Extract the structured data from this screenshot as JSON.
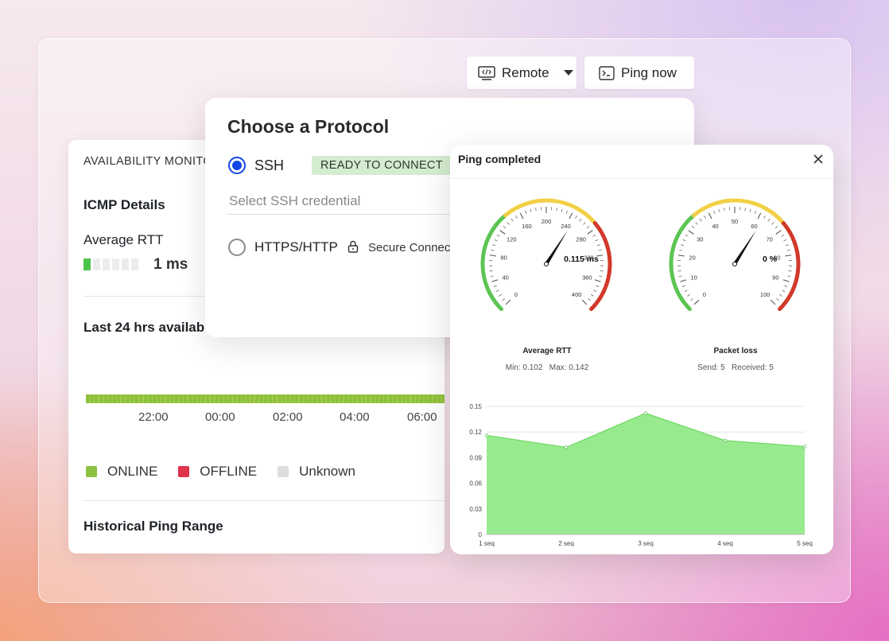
{
  "toolbar": {
    "remote_label": "Remote",
    "ping_label": "Ping now"
  },
  "availability": {
    "title": "AVAILABILITY MONITO",
    "icmp_heading": "ICMP Details",
    "avg_rtt_label": "Average RTT",
    "avg_rtt_value": "1 ms",
    "last24_heading": "Last 24 hrs availab",
    "time_ticks": [
      "22:00",
      "00:00",
      "02:00",
      "04:00",
      "06:00"
    ],
    "legend": [
      {
        "label": "ONLINE",
        "color": "#8cc141"
      },
      {
        "label": "OFFLINE",
        "color": "#e0334d"
      },
      {
        "label": "Unknown",
        "color": "#dddddd"
      }
    ],
    "historical_heading": "Historical Ping Range"
  },
  "protocol": {
    "title": "Choose a Protocol",
    "ssh_label": "SSH",
    "ssh_badge": "READY TO CONNECT",
    "credential_placeholder": "Select SSH credential",
    "https_label": "HTTPS/HTTP",
    "secure_label": "Secure Connec"
  },
  "ping": {
    "title": "Ping completed",
    "rtt_gauge": {
      "label": "Average RTT",
      "value_text": "0.115 ms",
      "min_text": "Min: 0.102",
      "max_text": "Max: 0.142",
      "ticks": [
        "0",
        "40",
        "80",
        "120",
        "160",
        "200",
        "240",
        "280",
        "320",
        "360",
        "400"
      ],
      "value": 0.115
    },
    "loss_gauge": {
      "label": "Packet loss",
      "value_text": "0 %",
      "send_text": "Send: 5",
      "received_text": "Received: 5",
      "ticks": [
        "0",
        "10",
        "20",
        "30",
        "40",
        "50",
        "60",
        "70",
        "80",
        "90",
        "100"
      ],
      "value": 0
    },
    "gauge_colors": {
      "green": "#5cc553",
      "yellow": "#f2d046",
      "red": "#d2392a"
    }
  },
  "chart_data": {
    "type": "area",
    "categories": [
      "1 seq",
      "2 seq",
      "3 seq",
      "4 seq",
      "5 seq"
    ],
    "values": [
      0.116,
      0.102,
      0.142,
      0.11,
      0.103
    ],
    "yticks": [
      "0",
      "0.03",
      "0.06",
      "0.09",
      "0.12",
      "0.15"
    ],
    "ylim": [
      0,
      0.15
    ],
    "fill_color": "#98ea8f",
    "line_color": "#6cd95f",
    "grid": true
  }
}
